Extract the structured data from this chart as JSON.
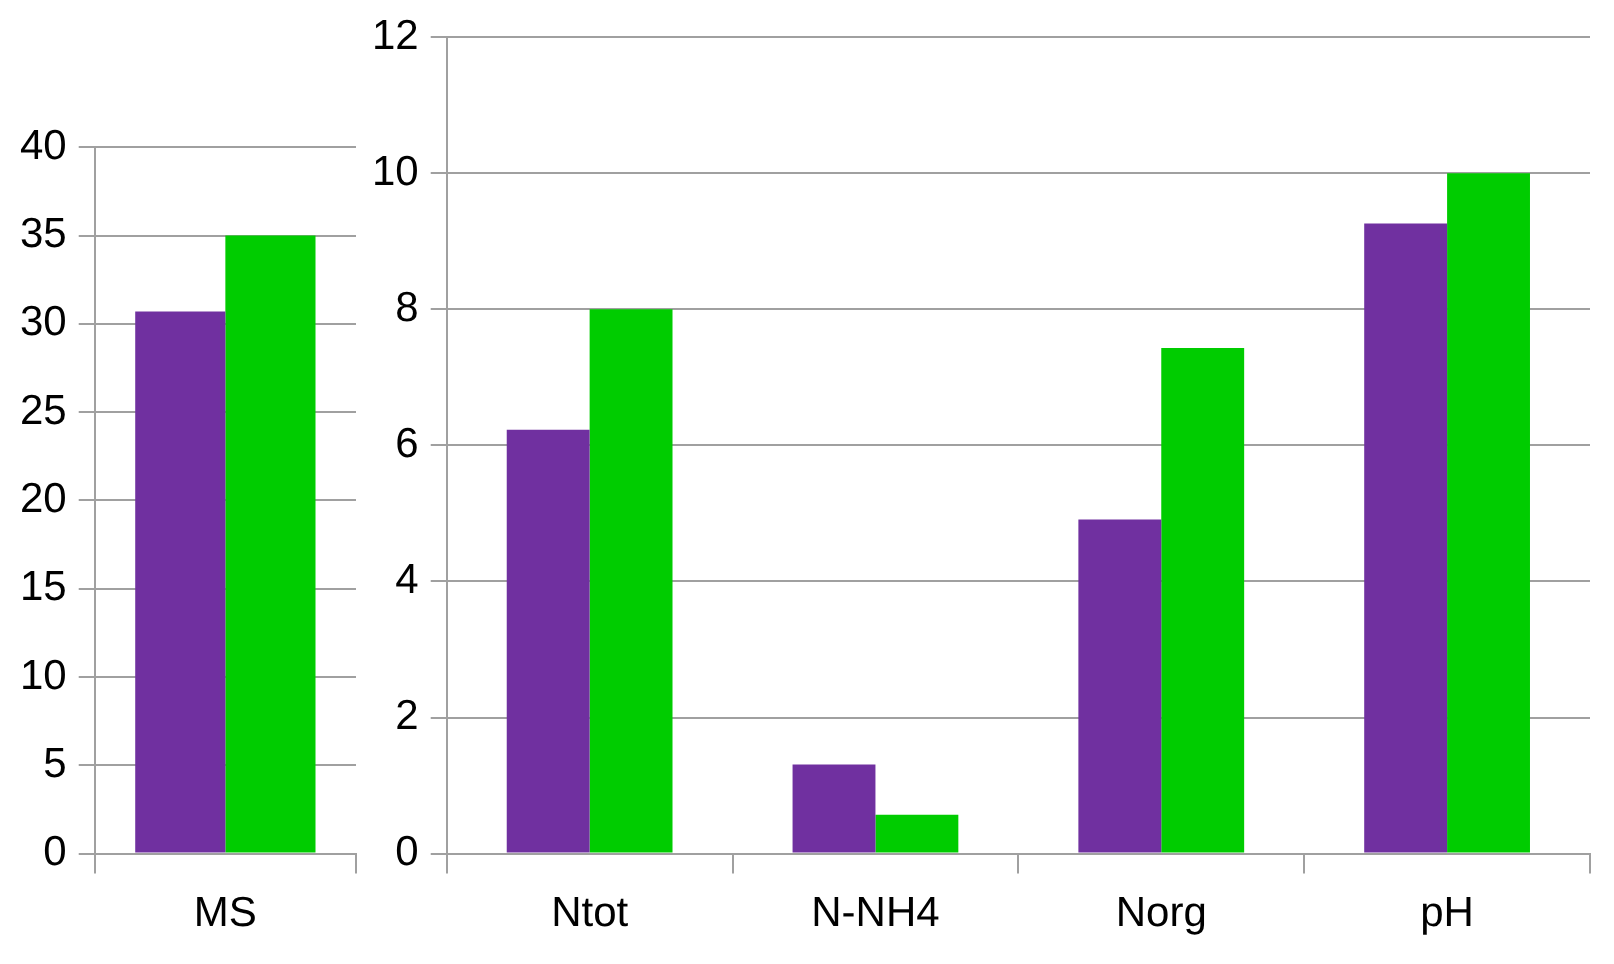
{
  "chart_data": [
    {
      "type": "bar",
      "categories": [
        "MS"
      ],
      "series": [
        {
          "color": "#7030a0",
          "values": [
            30.7
          ]
        },
        {
          "color": "#00cc00",
          "values": [
            35.0
          ]
        }
      ],
      "ylim": [
        0,
        40
      ],
      "yticks": [
        0,
        5,
        10,
        15,
        20,
        25,
        30,
        35,
        40
      ],
      "grid": "y"
    },
    {
      "type": "bar",
      "categories": [
        "Ntot",
        "N-NH4",
        "Norg",
        "pH"
      ],
      "series": [
        {
          "color": "#7030a0",
          "values": [
            6.23,
            1.31,
            4.91,
            9.26
          ]
        },
        {
          "color": "#00cc00",
          "values": [
            8.0,
            0.57,
            7.43,
            10.0
          ]
        }
      ],
      "ylim": [
        0,
        12
      ],
      "yticks": [
        0,
        2,
        4,
        6,
        8,
        10,
        12
      ],
      "grid": "y"
    }
  ]
}
